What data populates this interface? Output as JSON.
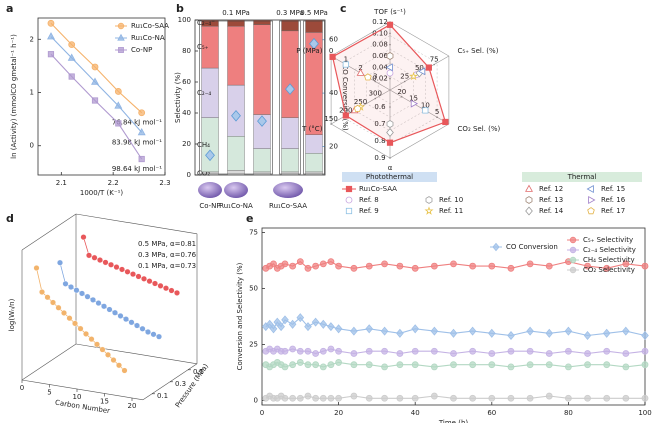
{
  "chart_data": [
    {
      "panel": "a",
      "type": "line",
      "xlabel": "1000/T (K⁻¹)",
      "ylabel": "ln (Activity) (mmolCO gmetal⁻¹ h⁻¹)",
      "x": [
        2.08,
        2.12,
        2.165,
        2.21,
        2.255
      ],
      "xlim": [
        2.055,
        2.3
      ],
      "xticks": [
        2.1,
        2.2,
        2.3
      ],
      "ylim": [
        -0.55,
        2.4
      ],
      "yticks": [
        0,
        1,
        2
      ],
      "legend": "upper right",
      "series": [
        {
          "name": "Ru₁Co-SAA",
          "color": "#f5b26b",
          "marker": "circle",
          "values": [
            2.3,
            1.9,
            1.48,
            1.02,
            0.62
          ],
          "label": "76.84 kJ mol⁻¹"
        },
        {
          "name": "Ru₁Co-NA",
          "color": "#8fb4e3",
          "marker": "triangle",
          "values": [
            2.05,
            1.65,
            1.2,
            0.75,
            0.25
          ],
          "label": "83.98 kJ mol⁻¹"
        },
        {
          "name": "Co-NP",
          "color": "#b09ad0",
          "marker": "square",
          "values": [
            1.72,
            1.3,
            0.85,
            0.42,
            -0.25
          ],
          "label": "98.64 kJ mol⁻¹"
        }
      ]
    },
    {
      "panel": "b",
      "type": "bar",
      "stacked": true,
      "ylabel": "Selectivity (%)",
      "y2label": "CO Conversion (%)",
      "categories": [
        "Co-NP",
        "Ru₁Co-NA",
        "Ru₁Co-SAA",
        null,
        null
      ],
      "pressure_labels": [
        "0.1 MPa",
        "0.3 MPa",
        "0.5 MPa"
      ],
      "ylim": [
        0,
        100
      ],
      "yticks": [
        0,
        20,
        40,
        60,
        80,
        100
      ],
      "y2lim": [
        9.3,
        67.4
      ],
      "y2ticks": [
        20,
        40,
        60
      ],
      "y2color": "#5b9bd5",
      "series": [
        {
          "name": "CO₂",
          "color": "#d9d9d9",
          "values": [
            2,
            3,
            2,
            2,
            2
          ]
        },
        {
          "name": "CH₄",
          "color": "#d5e8dc",
          "values": [
            35,
            22,
            15,
            15,
            12
          ]
        },
        {
          "name": "C₂₋₄",
          "color": "#d8d0ea",
          "values": [
            32,
            33,
            22,
            20,
            12
          ]
        },
        {
          "name": "C₅₊",
          "color": "#ee7f7f",
          "values": [
            27,
            38,
            58,
            56,
            66
          ]
        },
        {
          "name": "C₂₋₄⁼",
          "color": "#9c4a3a",
          "values": [
            4,
            4,
            3,
            7,
            8
          ]
        },
        {
          "axis": "y2",
          "marker": "diamond",
          "color": "#a9c8ea",
          "values": [
            16.7,
            31.5,
            29.5,
            41.5,
            58.5
          ]
        }
      ]
    },
    {
      "panel": "c",
      "type": "radar",
      "axes": [
        {
          "label": "TOF (s⁻¹)",
          "lim": [
            0,
            0.12
          ],
          "ticks": [
            0.02,
            0.04,
            0.06,
            0.08,
            {
              "value": 0.1,
              "label": "0.10"
            },
            0.12
          ]
        },
        {
          "label": "C₅₊ Sel. (%)",
          "lim": [
            0,
            100
          ],
          "ticks": [
            25,
            50,
            75
          ]
        },
        {
          "label": "CO₂ Sel. (%)",
          "lim": [
            25,
            0
          ],
          "ticks": [
            5,
            10,
            15,
            20
          ]
        },
        {
          "label": "α",
          "lim": [
            0.5,
            0.9
          ],
          "ticks": [
            0.6,
            0.7,
            0.8,
            0.9
          ]
        },
        {
          "label": "T (°C)",
          "lim": [
            350,
            150
          ],
          "ticks": [
            150,
            200,
            250,
            300
          ]
        },
        {
          "label": "P (MPa)",
          "lim": [
            4,
            0
          ],
          "ticks": [
            0,
            1,
            2,
            3
          ]
        }
      ],
      "legend_groups": [
        "Photothermal",
        "Thermal"
      ],
      "series": [
        {
          "name": "Ru₁Co-SAA",
          "group": "Photothermal",
          "color": "#e8575a",
          "marker": "square",
          "open": false,
          "connect": true,
          "values": [
            0.115,
            66,
            1.5,
            0.81,
            200,
            0.1
          ]
        },
        {
          "name": "Ref. 8",
          "group": "Photothermal",
          "color": "#c9a6e0",
          "marker": "circle",
          "open": true,
          "values": [
            0.03,
            45,
            null,
            null,
            null,
            null
          ]
        },
        {
          "name": "Ref. 9",
          "group": "Photothermal",
          "color": "#8fc1e3",
          "marker": "square",
          "open": true,
          "values": [
            null,
            null,
            10,
            null,
            null,
            1
          ]
        },
        {
          "name": "Ref. 10",
          "group": "Photothermal",
          "color": "#a0a0a0",
          "marker": "hexagon",
          "open": true,
          "values": [
            null,
            null,
            null,
            0.7,
            null,
            null
          ]
        },
        {
          "name": "Ref. 11",
          "group": "Photothermal",
          "color": "#e8c34a",
          "marker": "star",
          "open": true,
          "values": [
            null,
            40,
            null,
            null,
            250,
            null
          ]
        },
        {
          "name": "Ref. 12",
          "group": "Thermal",
          "color": "#e06b6b",
          "marker": "triangle",
          "open": true,
          "values": [
            null,
            null,
            null,
            null,
            230,
            2
          ]
        },
        {
          "name": "Ref. 13",
          "group": "Thermal",
          "color": "#a08878",
          "marker": "hexagon",
          "open": true,
          "values": [
            0.06,
            null,
            null,
            null,
            null,
            null
          ]
        },
        {
          "name": "Ref. 14",
          "group": "Thermal",
          "color": "#9a9a9a",
          "marker": "diamond",
          "open": true,
          "values": [
            null,
            50,
            null,
            0.75,
            null,
            null
          ]
        },
        {
          "name": "Ref. 15",
          "group": "Thermal",
          "color": "#6f8fd0",
          "marker": "tri-left",
          "open": true,
          "values": [
            0.04,
            55,
            null,
            null,
            null,
            null
          ]
        },
        {
          "name": "Ref. 16",
          "group": "Thermal",
          "color": "#a07fc8",
          "marker": "tri-right",
          "open": true,
          "values": [
            null,
            null,
            15,
            null,
            null,
            null
          ]
        },
        {
          "name": "Ref. 17",
          "group": "Thermal",
          "color": "#e3b44a",
          "marker": "pentagon",
          "open": true,
          "values": [
            null,
            null,
            null,
            null,
            240,
            2.5
          ]
        }
      ]
    },
    {
      "panel": "d",
      "type": "scatter3d",
      "xlabel": "Carbon Number",
      "ylabel": "log(Wₙ/n)",
      "zlabel": "Pressure (MPa)",
      "xlim": [
        0,
        22
      ],
      "xticks": [
        0,
        5,
        10,
        15,
        20
      ],
      "ylim": [
        -5,
        -0.5
      ],
      "zlim": [
        0,
        0.6
      ],
      "zticks": [
        0.1,
        0.3,
        0.5
      ],
      "series": [
        {
          "name": "0.5 MPa, α=0.81",
          "color": "#e8575a",
          "pressure": 0.5,
          "x": [
            3,
            4,
            5,
            6,
            7,
            8,
            9,
            10,
            11,
            12,
            13,
            14,
            15,
            16,
            17,
            18,
            19,
            20
          ],
          "values": [
            -1.0,
            -1.6,
            -1.65,
            -1.7,
            -1.75,
            -1.8,
            -1.85,
            -1.9,
            -1.95,
            -2.0,
            -2.05,
            -2.1,
            -2.15,
            -2.2,
            -2.25,
            -2.3,
            -2.35,
            -2.4
          ]
        },
        {
          "name": "0.3 MPa, α=0.76",
          "color": "#7ea6e0",
          "pressure": 0.3,
          "x": [
            2,
            3,
            4,
            5,
            6,
            7,
            8,
            9,
            10,
            11,
            12,
            13,
            14,
            15,
            16,
            17,
            18,
            19,
            20
          ],
          "values": [
            -1.5,
            -2.2,
            -2.28,
            -2.36,
            -2.44,
            -2.52,
            -2.6,
            -2.68,
            -2.76,
            -2.84,
            -2.92,
            -3.0,
            -3.08,
            -3.16,
            -3.24,
            -3.32,
            -3.4,
            -3.45,
            -3.5
          ]
        },
        {
          "name": "0.1 MPa, α=0.73",
          "color": "#f2b36b",
          "pressure": 0.1,
          "x": [
            1,
            2,
            3,
            4,
            5,
            6,
            7,
            8,
            9,
            10,
            11,
            12,
            13,
            14,
            15,
            16,
            17
          ],
          "values": [
            -1.3,
            -2.1,
            -2.25,
            -2.4,
            -2.55,
            -2.7,
            -2.85,
            -3.0,
            -3.15,
            -3.3,
            -3.45,
            -3.6,
            -3.75,
            -3.9,
            -4.05,
            -4.2,
            -4.35
          ]
        }
      ]
    },
    {
      "panel": "e",
      "type": "line",
      "xlabel": "Time (h)",
      "ylabel": "Conversion and Selectivity (%)",
      "x": [
        1,
        2,
        3,
        4,
        5,
        6,
        8,
        10,
        12,
        14,
        16,
        18,
        20,
        24,
        28,
        32,
        36,
        40,
        45,
        50,
        55,
        60,
        65,
        70,
        75,
        80,
        85,
        90,
        95,
        100
      ],
      "xlim": [
        0,
        100
      ],
      "xticks": [
        0,
        20,
        40,
        60,
        80,
        100
      ],
      "ylim": [
        -2,
        77
      ],
      "yticks": [
        0,
        25,
        50,
        75
      ],
      "legend": "upper right",
      "series": [
        {
          "name": "CO Conversion",
          "color": "#9fc0e8",
          "marker": "diamond",
          "values": [
            33,
            34,
            32,
            35,
            33,
            36,
            34,
            37,
            33,
            35,
            34,
            33,
            32,
            31,
            32,
            31,
            30,
            32,
            31,
            30,
            31,
            30,
            29,
            31,
            30,
            31,
            29,
            30,
            31,
            29
          ]
        },
        {
          "name": "C₅₊ Selectivity",
          "color": "#ef8080",
          "marker": "circle",
          "values": [
            59,
            60,
            61,
            59,
            60,
            61,
            60,
            62,
            59,
            60,
            61,
            62,
            60,
            59,
            60,
            61,
            60,
            59,
            60,
            61,
            60,
            60,
            59,
            61,
            60,
            62,
            60,
            59,
            61,
            60
          ]
        },
        {
          "name": "C₂₋₄ Selectivity",
          "color": "#c4b2e4",
          "marker": "circle",
          "values": [
            22,
            23,
            22,
            23,
            22,
            22,
            23,
            22,
            22,
            21,
            22,
            23,
            22,
            21,
            22,
            22,
            21,
            22,
            22,
            21,
            22,
            21,
            22,
            22,
            21,
            22,
            21,
            22,
            21,
            22
          ]
        },
        {
          "name": "CH₄ Selectivity",
          "color": "#b3d8c3",
          "marker": "circle",
          "values": [
            16,
            15,
            16,
            17,
            16,
            15,
            16,
            17,
            16,
            16,
            15,
            16,
            17,
            16,
            16,
            15,
            16,
            16,
            15,
            16,
            16,
            16,
            15,
            16,
            16,
            15,
            16,
            16,
            15,
            16
          ]
        },
        {
          "name": "CO₂ Selectivity",
          "color": "#cccccc",
          "marker": "circle",
          "values": [
            1,
            2,
            1,
            1,
            2,
            1,
            1,
            1,
            2,
            1,
            1,
            1,
            1,
            2,
            1,
            1,
            1,
            1,
            2,
            1,
            1,
            1,
            1,
            1,
            2,
            1,
            1,
            1,
            1,
            1
          ]
        }
      ]
    }
  ]
}
